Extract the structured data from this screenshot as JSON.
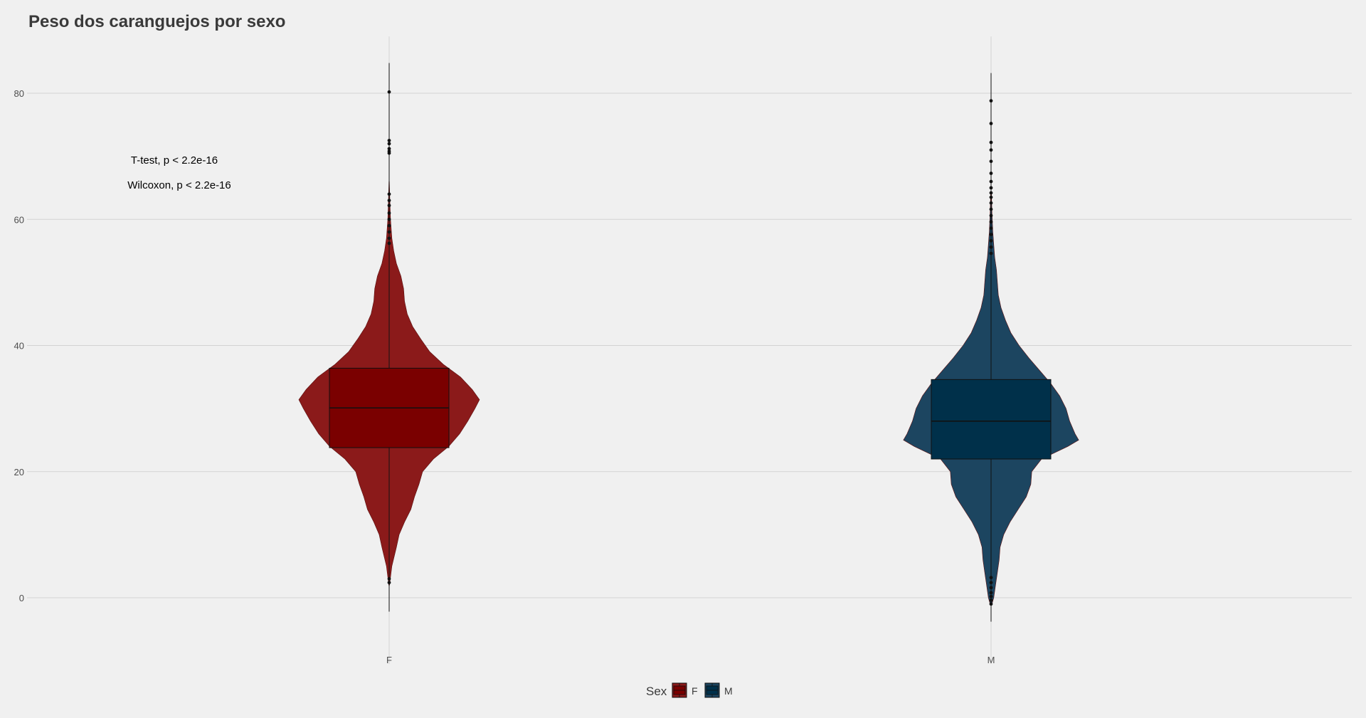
{
  "chart_data": {
    "type": "violin",
    "title": "Peso dos caranguejos por sexo",
    "xlabel": "",
    "ylabel": "",
    "categories": [
      "F",
      "M"
    ],
    "y_ticks": [
      0,
      20,
      40,
      60,
      80
    ],
    "ylim": [
      -6,
      89
    ],
    "grid": true,
    "legend": {
      "title": "Sex",
      "placement": "bottom",
      "entries": [
        "F",
        "M"
      ]
    },
    "annotations": [
      "T-test, p < 2.2e-16",
      "Wilcoxon, p < 2.2e-16"
    ],
    "series": [
      {
        "category": "F",
        "violin_color": "#8b1a1a",
        "box_color": "#7a0000",
        "box": {
          "q1": 23.8,
          "median": 30.1,
          "q3": 36.4,
          "whisker_low": -2.2,
          "whisker_high": 84.8
        },
        "outliers": [
          80.2,
          72.5,
          72.0,
          71.2,
          70.8,
          70.5,
          64.0,
          63.0,
          62.2,
          61.0,
          60.0,
          59.0,
          58.0,
          57.0,
          56.2,
          3.0,
          2.4
        ],
        "density": [
          [
            2.0,
            0.004
          ],
          [
            5.0,
            0.03
          ],
          [
            8.0,
            0.08
          ],
          [
            10.0,
            0.11
          ],
          [
            12.0,
            0.17
          ],
          [
            14.0,
            0.24
          ],
          [
            16.0,
            0.28
          ],
          [
            18.0,
            0.33
          ],
          [
            20.0,
            0.37
          ],
          [
            22.0,
            0.49
          ],
          [
            24.0,
            0.66
          ],
          [
            26.0,
            0.78
          ],
          [
            28.0,
            0.87
          ],
          [
            30.0,
            0.95
          ],
          [
            31.4,
            1.0
          ],
          [
            33.0,
            0.92
          ],
          [
            35.0,
            0.79
          ],
          [
            37.0,
            0.6
          ],
          [
            39.0,
            0.45
          ],
          [
            41.0,
            0.35
          ],
          [
            43.0,
            0.26
          ],
          [
            45.0,
            0.2
          ],
          [
            47.0,
            0.17
          ],
          [
            49.0,
            0.16
          ],
          [
            51.0,
            0.13
          ],
          [
            53.0,
            0.08
          ],
          [
            55.0,
            0.05
          ],
          [
            57.0,
            0.03
          ],
          [
            60.0,
            0.015
          ],
          [
            63.0,
            0.008
          ],
          [
            66.0,
            0.002
          ]
        ]
      },
      {
        "category": "M",
        "violin_color": "#1c4560",
        "box_color": "#00304a",
        "box": {
          "q1": 22.0,
          "median": 28.0,
          "q3": 34.6,
          "whisker_low": -3.8,
          "whisker_high": 83.2
        },
        "outliers": [
          78.8,
          75.2,
          72.2,
          71.0,
          69.2,
          67.3,
          66.0,
          65.0,
          64.2,
          63.5,
          62.6,
          61.6,
          60.6,
          59.6,
          58.6,
          57.6,
          56.6,
          55.6,
          54.6,
          3.2,
          2.4,
          1.6,
          0.8,
          0.2,
          -0.4,
          -1.0
        ],
        "density": [
          [
            -1.0,
            0.01
          ],
          [
            0.0,
            0.03
          ],
          [
            2.0,
            0.05
          ],
          [
            4.0,
            0.07
          ],
          [
            6.0,
            0.09
          ],
          [
            8.0,
            0.1
          ],
          [
            10.0,
            0.14
          ],
          [
            12.0,
            0.21
          ],
          [
            14.0,
            0.3
          ],
          [
            16.0,
            0.39
          ],
          [
            18.0,
            0.44
          ],
          [
            20.0,
            0.45
          ],
          [
            22.0,
            0.56
          ],
          [
            24.0,
            0.85
          ],
          [
            25.0,
            0.97
          ],
          [
            26.0,
            0.93
          ],
          [
            28.0,
            0.87
          ],
          [
            30.0,
            0.83
          ],
          [
            32.0,
            0.76
          ],
          [
            34.0,
            0.66
          ],
          [
            36.0,
            0.54
          ],
          [
            38.0,
            0.42
          ],
          [
            40.0,
            0.31
          ],
          [
            42.0,
            0.22
          ],
          [
            44.0,
            0.16
          ],
          [
            46.0,
            0.11
          ],
          [
            48.0,
            0.08
          ],
          [
            50.0,
            0.07
          ],
          [
            52.0,
            0.06
          ],
          [
            54.0,
            0.04
          ],
          [
            56.0,
            0.03
          ],
          [
            58.0,
            0.02
          ],
          [
            61.0,
            0.01
          ],
          [
            64.0,
            0.005
          ]
        ]
      }
    ]
  },
  "colors": {
    "background": "#f0f0f0",
    "grid": "#d3d3d3",
    "outline": "#111111"
  }
}
